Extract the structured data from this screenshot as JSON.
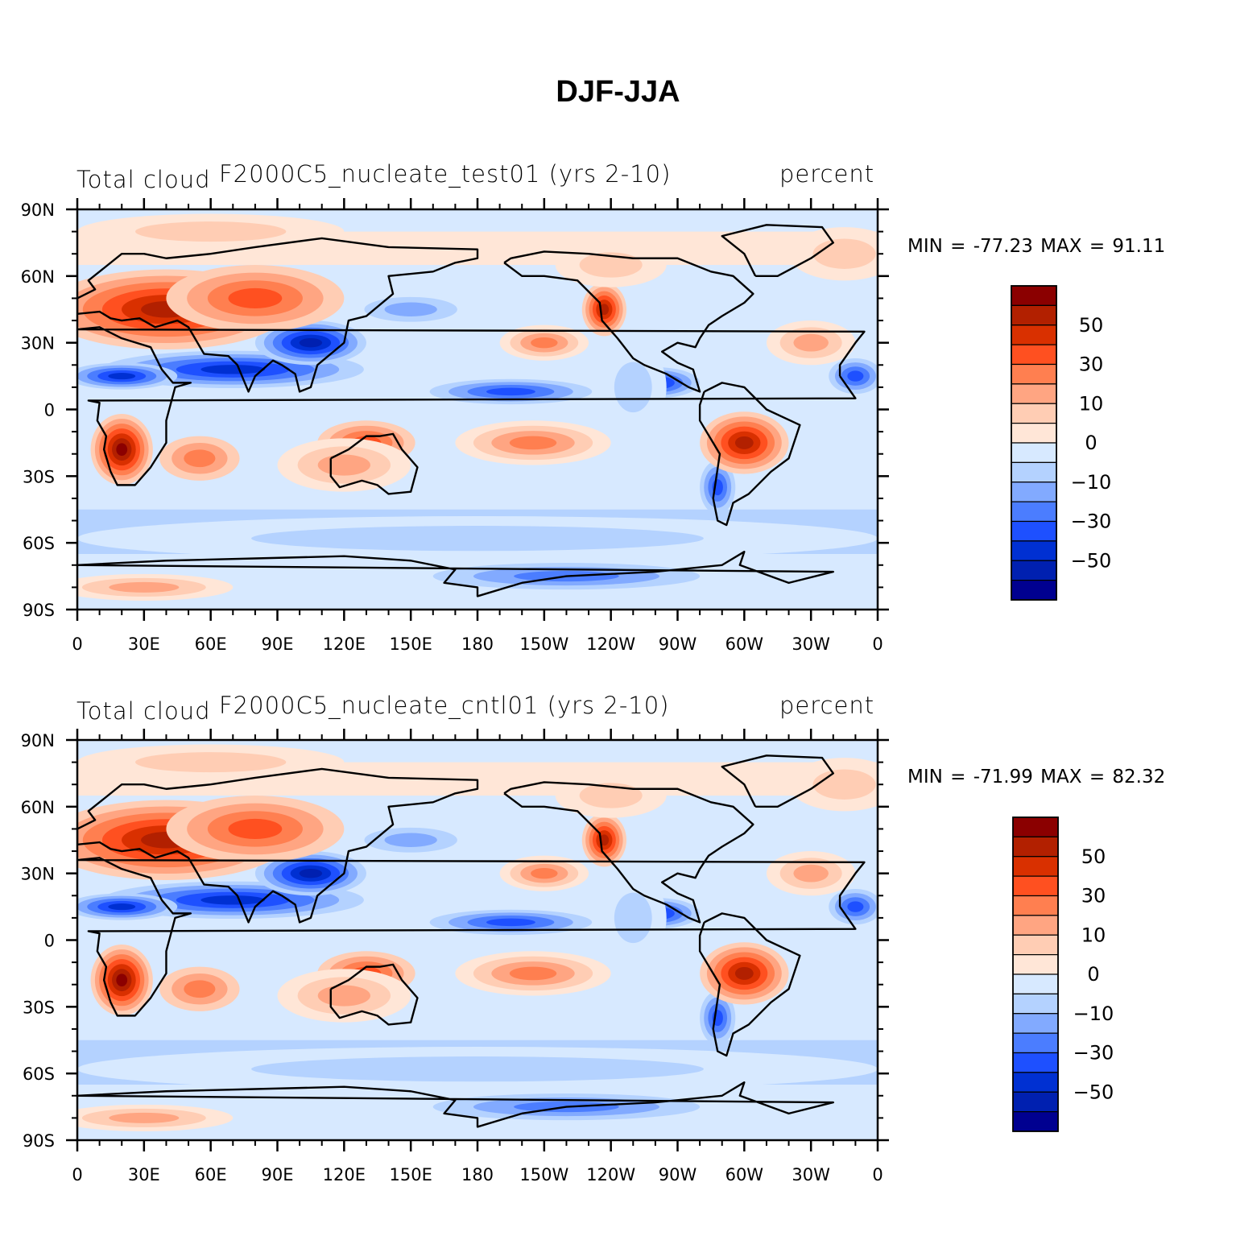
{
  "title": "DJF-JJA",
  "panels": [
    {
      "left_label": "Total cloud",
      "center_label": "F2000C5_nucleate_test01 (yrs 2-10)",
      "right_label": "percent",
      "min_max": "MIN = -77.23 MAX =  91.11"
    },
    {
      "left_label": "Total cloud",
      "center_label": "F2000C5_nucleate_cntl01 (yrs 2-10)",
      "right_label": "percent",
      "min_max": "MIN = -71.99 MAX =  82.32"
    }
  ],
  "lat_ticks": [
    "90N",
    "60N",
    "30N",
    "0",
    "30S",
    "60S",
    "90S"
  ],
  "lon_ticks": [
    "0",
    "30E",
    "60E",
    "90E",
    "120E",
    "150E",
    "180",
    "150W",
    "120W",
    "90W",
    "60W",
    "30W",
    "0"
  ],
  "colorbar": {
    "labels": [
      "50",
      "30",
      "10",
      "0",
      "-10",
      "-30",
      "-50"
    ],
    "colors": [
      "#8b0000",
      "#b22000",
      "#d93000",
      "#ff5020",
      "#ff7f50",
      "#ffa582",
      "#ffcdb4",
      "#ffe6d7",
      "#d7e9ff",
      "#b4d2ff",
      "#82aaff",
      "#4b7dff",
      "#1e50ff",
      "#0030d2",
      "#0020b0",
      "#000090"
    ]
  }
}
